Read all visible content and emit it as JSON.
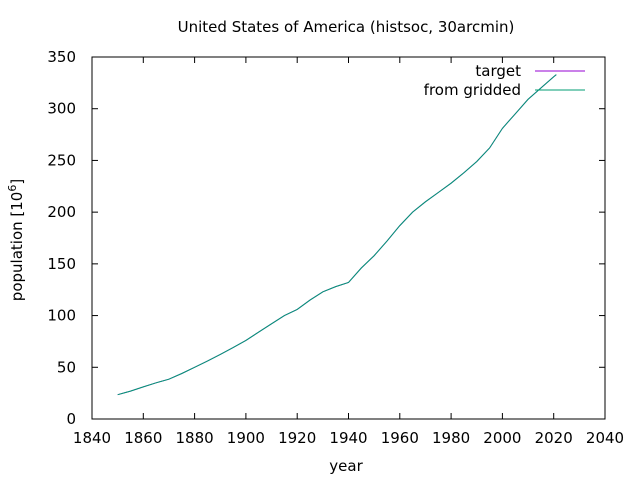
{
  "chart_data": {
    "type": "line",
    "title": "United States of America (histsoc, 30arcmin)",
    "xlabel": "year",
    "ylabel": "population [10",
    "ylabel_sup": "6",
    "ylabel_close": "]",
    "xlim": [
      1840,
      2040
    ],
    "ylim": [
      0,
      350
    ],
    "xticks": [
      1840,
      1860,
      1880,
      1900,
      1920,
      1940,
      1960,
      1980,
      2000,
      2020,
      2040
    ],
    "yticks": [
      0,
      50,
      100,
      150,
      200,
      250,
      300,
      350
    ],
    "grid": false,
    "legend_position": "top-right",
    "series": [
      {
        "name": "target",
        "color": "#9400d3",
        "x": [
          1850,
          1855,
          1860,
          1865,
          1870,
          1875,
          1880,
          1885,
          1890,
          1895,
          1900,
          1905,
          1910,
          1915,
          1920,
          1925,
          1930,
          1935,
          1940,
          1945,
          1950,
          1955,
          1960,
          1965,
          1970,
          1975,
          1980,
          1985,
          1990,
          1995,
          2000,
          2005,
          2010,
          2015,
          2020,
          2021
        ],
        "y": [
          23.5,
          27,
          31,
          35,
          38.5,
          44,
          50,
          56,
          62.5,
          69,
          76,
          84,
          92,
          100,
          106,
          115,
          123,
          128,
          132,
          146,
          158,
          172,
          187,
          200,
          210,
          219,
          228,
          238,
          249,
          262,
          281,
          295,
          309,
          320,
          331,
          333
        ]
      },
      {
        "name": "from gridded",
        "color": "#009e73",
        "x": [
          1850,
          1855,
          1860,
          1865,
          1870,
          1875,
          1880,
          1885,
          1890,
          1895,
          1900,
          1905,
          1910,
          1915,
          1920,
          1925,
          1930,
          1935,
          1940,
          1945,
          1950,
          1955,
          1960,
          1965,
          1970,
          1975,
          1980,
          1985,
          1990,
          1995,
          2000,
          2005,
          2010,
          2015,
          2020,
          2021
        ],
        "y": [
          23.5,
          27,
          31,
          35,
          38.5,
          44,
          50,
          56,
          62.5,
          69,
          76,
          84,
          92,
          100,
          106,
          115,
          123,
          128,
          132,
          146,
          158,
          172,
          187,
          200,
          210,
          219,
          228,
          238,
          249,
          262,
          281,
          295,
          309,
          320,
          331,
          333
        ]
      }
    ]
  }
}
